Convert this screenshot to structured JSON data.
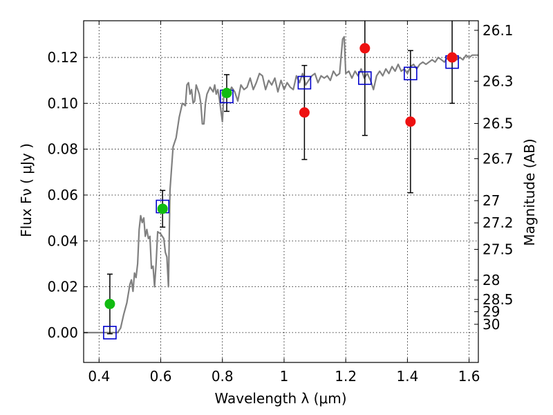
{
  "chart_data": {
    "type": "scatter",
    "title": "",
    "xlabel": "Wavelength  λ (μm)",
    "ylabel": "Flux  Fν  ( μJy )",
    "y2label": "Magnitude (AB)",
    "xlim": [
      0.35,
      1.63
    ],
    "ylim": [
      -0.013,
      0.136
    ],
    "grid": true,
    "xticks": [
      {
        "value": 0.4,
        "label": "0.4"
      },
      {
        "value": 0.6,
        "label": "0.6"
      },
      {
        "value": 0.8,
        "label": "0.8"
      },
      {
        "value": 1.0,
        "label": "1"
      },
      {
        "value": 1.2,
        "label": "1.2"
      },
      {
        "value": 1.4,
        "label": "1.4"
      },
      {
        "value": 1.6,
        "label": "1.6"
      }
    ],
    "yticks": [
      {
        "value": 0.0,
        "label": "0.00"
      },
      {
        "value": 0.02,
        "label": "0.02"
      },
      {
        "value": 0.04,
        "label": "0.04"
      },
      {
        "value": 0.06,
        "label": "0.06"
      },
      {
        "value": 0.08,
        "label": "0.08"
      },
      {
        "value": 0.1,
        "label": "0.10"
      },
      {
        "value": 0.12,
        "label": "0.12"
      }
    ],
    "y2ticks": [
      {
        "mag": 26.1,
        "label": "26.1"
      },
      {
        "mag": 26.3,
        "label": "26.3"
      },
      {
        "mag": 26.5,
        "label": "26.5"
      },
      {
        "mag": 26.7,
        "label": "26.7"
      },
      {
        "mag": 27.0,
        "label": "27"
      },
      {
        "mag": 27.2,
        "label": "27.2"
      },
      {
        "mag": 27.5,
        "label": "27.5"
      },
      {
        "mag": 28.0,
        "label": "28"
      },
      {
        "mag": 28.5,
        "label": "28.5"
      },
      {
        "mag": 29.0,
        "label": "29"
      },
      {
        "mag": 30.0,
        "label": "30"
      }
    ],
    "colors": {
      "model": "#808080",
      "model_points": "#0000cc",
      "detected": "#11bb11",
      "low_snr": "#ee1111",
      "errorbar": "#000000",
      "grid": "#000000"
    },
    "series": [
      {
        "kind": "line",
        "points": [
          [
            0.35,
            0.0
          ],
          [
            0.44,
            0.0
          ],
          [
            0.46,
            0.0
          ],
          [
            0.47,
            0.002
          ],
          [
            0.48,
            0.008
          ],
          [
            0.49,
            0.013
          ],
          [
            0.5,
            0.021
          ],
          [
            0.505,
            0.023
          ],
          [
            0.51,
            0.018
          ],
          [
            0.515,
            0.026
          ],
          [
            0.52,
            0.024
          ],
          [
            0.525,
            0.03
          ],
          [
            0.53,
            0.045
          ],
          [
            0.535,
            0.051
          ],
          [
            0.54,
            0.048
          ],
          [
            0.545,
            0.05
          ],
          [
            0.55,
            0.042
          ],
          [
            0.555,
            0.045
          ],
          [
            0.56,
            0.041
          ],
          [
            0.565,
            0.042
          ],
          [
            0.57,
            0.028
          ],
          [
            0.575,
            0.029
          ],
          [
            0.58,
            0.02
          ],
          [
            0.585,
            0.03
          ],
          [
            0.59,
            0.044
          ],
          [
            0.6,
            0.043
          ],
          [
            0.61,
            0.041
          ],
          [
            0.615,
            0.035
          ],
          [
            0.62,
            0.033
          ],
          [
            0.625,
            0.02
          ],
          [
            0.63,
            0.062
          ],
          [
            0.64,
            0.081
          ],
          [
            0.65,
            0.085
          ],
          [
            0.66,
            0.094
          ],
          [
            0.67,
            0.1
          ],
          [
            0.68,
            0.099
          ],
          [
            0.685,
            0.108
          ],
          [
            0.69,
            0.109
          ],
          [
            0.695,
            0.104
          ],
          [
            0.7,
            0.106
          ],
          [
            0.705,
            0.1
          ],
          [
            0.71,
            0.101
          ],
          [
            0.715,
            0.108
          ],
          [
            0.72,
            0.106
          ],
          [
            0.725,
            0.104
          ],
          [
            0.73,
            0.1
          ],
          [
            0.735,
            0.091
          ],
          [
            0.74,
            0.091
          ],
          [
            0.745,
            0.1
          ],
          [
            0.75,
            0.104
          ],
          [
            0.76,
            0.107
          ],
          [
            0.77,
            0.105
          ],
          [
            0.775,
            0.108
          ],
          [
            0.78,
            0.104
          ],
          [
            0.785,
            0.106
          ],
          [
            0.79,
            0.102
          ],
          [
            0.8,
            0.092
          ],
          [
            0.805,
            0.105
          ],
          [
            0.81,
            0.103
          ],
          [
            0.82,
            0.104
          ],
          [
            0.83,
            0.107
          ],
          [
            0.84,
            0.105
          ],
          [
            0.85,
            0.101
          ],
          [
            0.86,
            0.108
          ],
          [
            0.87,
            0.106
          ],
          [
            0.88,
            0.107
          ],
          [
            0.89,
            0.111
          ],
          [
            0.9,
            0.106
          ],
          [
            0.91,
            0.109
          ],
          [
            0.92,
            0.113
          ],
          [
            0.93,
            0.112
          ],
          [
            0.94,
            0.106
          ],
          [
            0.95,
            0.11
          ],
          [
            0.96,
            0.108
          ],
          [
            0.97,
            0.111
          ],
          [
            0.98,
            0.105
          ],
          [
            0.99,
            0.11
          ],
          [
            1.0,
            0.106
          ],
          [
            1.01,
            0.109
          ],
          [
            1.02,
            0.107
          ],
          [
            1.03,
            0.106
          ],
          [
            1.04,
            0.112
          ],
          [
            1.05,
            0.109
          ],
          [
            1.06,
            0.113
          ],
          [
            1.07,
            0.108
          ],
          [
            1.08,
            0.11
          ],
          [
            1.09,
            0.112
          ],
          [
            1.1,
            0.113
          ],
          [
            1.11,
            0.109
          ],
          [
            1.12,
            0.112
          ],
          [
            1.13,
            0.111
          ],
          [
            1.14,
            0.112
          ],
          [
            1.15,
            0.11
          ],
          [
            1.16,
            0.114
          ],
          [
            1.17,
            0.112
          ],
          [
            1.18,
            0.113
          ],
          [
            1.19,
            0.128
          ],
          [
            1.195,
            0.129
          ],
          [
            1.2,
            0.113
          ],
          [
            1.21,
            0.114
          ],
          [
            1.22,
            0.111
          ],
          [
            1.23,
            0.114
          ],
          [
            1.24,
            0.112
          ],
          [
            1.25,
            0.115
          ],
          [
            1.26,
            0.111
          ],
          [
            1.27,
            0.113
          ],
          [
            1.28,
            0.11
          ],
          [
            1.29,
            0.106
          ],
          [
            1.3,
            0.112
          ],
          [
            1.31,
            0.114
          ],
          [
            1.32,
            0.112
          ],
          [
            1.33,
            0.115
          ],
          [
            1.34,
            0.113
          ],
          [
            1.35,
            0.116
          ],
          [
            1.36,
            0.114
          ],
          [
            1.37,
            0.117
          ],
          [
            1.38,
            0.114
          ],
          [
            1.39,
            0.115
          ],
          [
            1.4,
            0.113
          ],
          [
            1.41,
            0.116
          ],
          [
            1.42,
            0.117
          ],
          [
            1.43,
            0.115
          ],
          [
            1.44,
            0.117
          ],
          [
            1.45,
            0.118
          ],
          [
            1.46,
            0.117
          ],
          [
            1.47,
            0.118
          ],
          [
            1.48,
            0.119
          ],
          [
            1.49,
            0.118
          ],
          [
            1.5,
            0.12
          ],
          [
            1.51,
            0.119
          ],
          [
            1.52,
            0.118
          ],
          [
            1.53,
            0.12
          ],
          [
            1.54,
            0.119
          ],
          [
            1.55,
            0.121
          ],
          [
            1.56,
            0.119
          ],
          [
            1.57,
            0.12
          ],
          [
            1.58,
            0.119
          ],
          [
            1.59,
            0.121
          ],
          [
            1.6,
            0.12
          ],
          [
            1.61,
            0.121
          ],
          [
            1.63,
            0.121
          ]
        ]
      },
      {
        "kind": "model_squares",
        "points": [
          [
            0.435,
            0.0
          ],
          [
            0.606,
            0.055
          ],
          [
            0.814,
            0.103
          ],
          [
            1.066,
            0.109
          ],
          [
            1.262,
            0.111
          ],
          [
            1.41,
            0.113
          ],
          [
            1.545,
            0.118
          ]
        ]
      },
      {
        "kind": "detected",
        "points": [
          [
            0.435,
            0.0125,
            0.013
          ],
          [
            0.606,
            0.054,
            0.008
          ],
          [
            0.814,
            0.1045,
            0.008
          ]
        ]
      },
      {
        "kind": "low_snr",
        "points": [
          [
            1.066,
            0.096,
            0.0205
          ],
          [
            1.262,
            0.124,
            0.038
          ],
          [
            1.41,
            0.092,
            0.031
          ],
          [
            1.545,
            0.12,
            0.02
          ]
        ]
      }
    ]
  }
}
